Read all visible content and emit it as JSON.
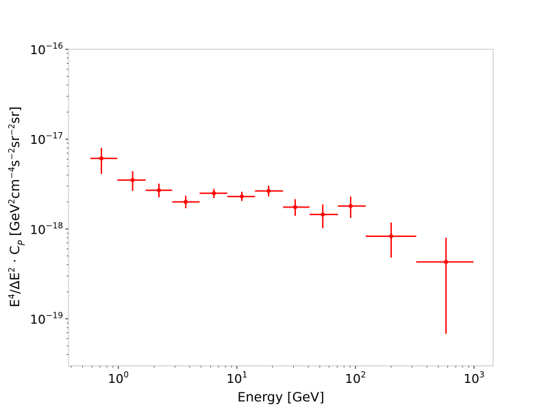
{
  "chart_data": {
    "type": "scatter",
    "title": "",
    "xlabel": "Energy [GeV]",
    "ylabel": "E⁴/ΔE² · C_P [GeV²cm⁻⁴s⁻²sr⁻²sr]",
    "xscale": "log",
    "yscale": "log",
    "xlim": [
      0.38,
      1450
    ],
    "ylim": [
      3e-20,
      1e-16
    ],
    "xticks": [
      1,
      10,
      100,
      1000
    ],
    "xtick_labels": [
      {
        "base": "10",
        "exp": "0"
      },
      {
        "base": "10",
        "exp": "1"
      },
      {
        "base": "10",
        "exp": "2"
      },
      {
        "base": "10",
        "exp": "3"
      }
    ],
    "yticks": [
      1e-19,
      1e-18,
      1e-17,
      1e-16
    ],
    "ytick_labels": [
      {
        "base": "10",
        "exp": "−19"
      },
      {
        "base": "10",
        "exp": "−18"
      },
      {
        "base": "10",
        "exp": "−17"
      },
      {
        "base": "10",
        "exp": "−16"
      }
    ],
    "grid": false,
    "legend": "none",
    "color": "#ff0000",
    "points": [
      {
        "x": 0.72,
        "x_lo": 0.58,
        "x_hi": 0.98,
        "y": 6.1e-18,
        "y_lo": 4.1e-18,
        "y_hi": 8e-18
      },
      {
        "x": 1.32,
        "x_lo": 0.98,
        "x_hi": 1.7,
        "y": 3.5e-18,
        "y_lo": 2.65e-18,
        "y_hi": 4.4e-18
      },
      {
        "x": 2.2,
        "x_lo": 1.7,
        "x_hi": 2.85,
        "y": 2.7e-18,
        "y_lo": 2.25e-18,
        "y_hi": 3.2e-18
      },
      {
        "x": 3.7,
        "x_lo": 2.85,
        "x_hi": 4.85,
        "y": 2e-18,
        "y_lo": 1.7e-18,
        "y_hi": 2.35e-18
      },
      {
        "x": 6.4,
        "x_lo": 4.85,
        "x_hi": 8.3,
        "y": 2.5e-18,
        "y_lo": 2.2e-18,
        "y_hi": 2.8e-18
      },
      {
        "x": 11.0,
        "x_lo": 8.3,
        "x_hi": 14.2,
        "y": 2.3e-18,
        "y_lo": 2.05e-18,
        "y_hi": 2.6e-18
      },
      {
        "x": 18.5,
        "x_lo": 14.2,
        "x_hi": 24.5,
        "y": 2.65e-18,
        "y_lo": 2.3e-18,
        "y_hi": 3.05e-18
      },
      {
        "x": 31.0,
        "x_lo": 24.5,
        "x_hi": 41.0,
        "y": 1.75e-18,
        "y_lo": 1.4e-18,
        "y_hi": 2.15e-18
      },
      {
        "x": 53.0,
        "x_lo": 41.0,
        "x_hi": 71.0,
        "y": 1.45e-18,
        "y_lo": 1.02e-18,
        "y_hi": 1.88e-18
      },
      {
        "x": 91.0,
        "x_lo": 71.0,
        "x_hi": 122.0,
        "y": 1.8e-18,
        "y_lo": 1.33e-18,
        "y_hi": 2.3e-18
      },
      {
        "x": 200.0,
        "x_lo": 122.0,
        "x_hi": 325.0,
        "y": 8.3e-19,
        "y_lo": 4.8e-19,
        "y_hi": 1.18e-18
      },
      {
        "x": 580.0,
        "x_lo": 325.0,
        "x_hi": 990.0,
        "y": 4.3e-19,
        "y_lo": 6.8e-20,
        "y_hi": 8e-19
      }
    ]
  }
}
